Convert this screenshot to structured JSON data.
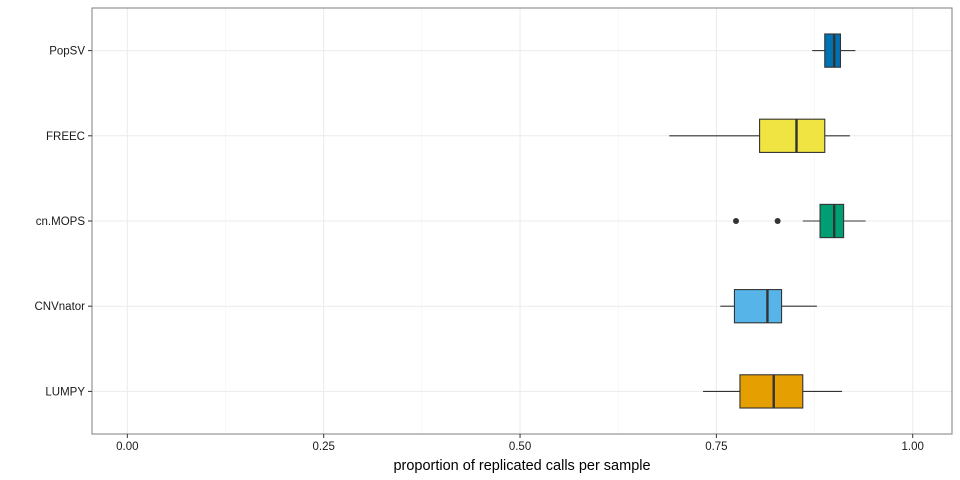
{
  "chart_data": {
    "type": "boxplot",
    "orientation": "horizontal",
    "title": "",
    "xlabel": "proportion of replicated calls per sample",
    "ylabel": "",
    "xlim": [
      -0.045,
      1.05
    ],
    "x_ticks": [
      0.0,
      0.25,
      0.5,
      0.75,
      1.0
    ],
    "x_tick_labels": [
      "0.00",
      "0.25",
      "0.50",
      "0.75",
      "1.00"
    ],
    "grid": true,
    "legend": "none",
    "categories": [
      "PopSV",
      "FREEC",
      "cn.MOPS",
      "CNVnator",
      "LUMPY"
    ],
    "boxes": [
      {
        "name": "PopSV",
        "whisker_low": 0.872,
        "q1": 0.888,
        "median": 0.9,
        "q3": 0.908,
        "whisker_high": 0.927,
        "outliers": [],
        "color": "#0072B2"
      },
      {
        "name": "FREEC",
        "whisker_low": 0.69,
        "q1": 0.805,
        "median": 0.852,
        "q3": 0.888,
        "whisker_high": 0.92,
        "outliers": [],
        "color": "#F0E442"
      },
      {
        "name": "cn.MOPS",
        "whisker_low": 0.86,
        "q1": 0.882,
        "median": 0.9,
        "q3": 0.912,
        "whisker_high": 0.94,
        "outliers": [
          0.775,
          0.828
        ],
        "color": "#009E73"
      },
      {
        "name": "CNVnator",
        "whisker_low": 0.755,
        "q1": 0.773,
        "median": 0.815,
        "q3": 0.833,
        "whisker_high": 0.878,
        "outliers": [],
        "color": "#56B4E9"
      },
      {
        "name": "LUMPY",
        "whisker_low": 0.733,
        "q1": 0.78,
        "median": 0.823,
        "q3": 0.86,
        "whisker_high": 0.91,
        "outliers": [],
        "color": "#E69F00"
      }
    ]
  }
}
